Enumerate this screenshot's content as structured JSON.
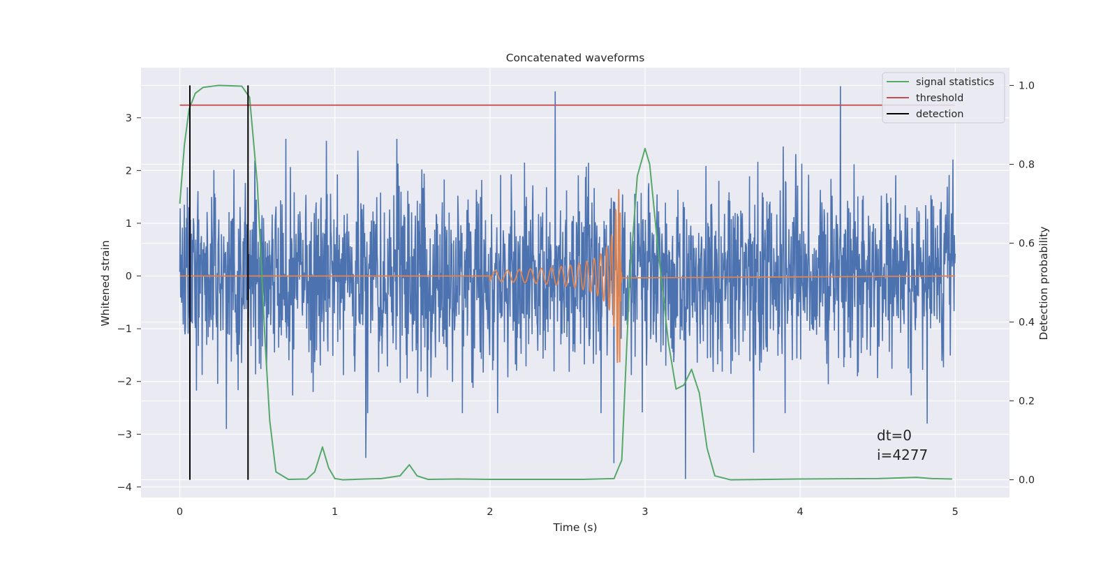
{
  "chart_data": {
    "type": "line",
    "title": "Concatenated waveforms",
    "xlabel": "Time (s)",
    "ylabel": "Whitened strain",
    "ylabel_right": "Detection probability",
    "xlim": [
      -0.25,
      5.35
    ],
    "ylim_left": [
      -4.2,
      3.95
    ],
    "ylim_right": [
      -0.045,
      1.045
    ],
    "x_ticks": [
      "0",
      "1",
      "2",
      "3",
      "4",
      "5"
    ],
    "y_ticks_left": [
      "3",
      "2",
      "1",
      "0",
      "−1",
      "−2",
      "−3",
      "−4"
    ],
    "y_ticks_right": [
      "1.0",
      "0.8",
      "0.6",
      "0.4",
      "0.2",
      "0.0"
    ],
    "grid": true,
    "legend_position": "top-right",
    "legend": [
      "signal statistics",
      "threshold",
      "detection"
    ],
    "colors": {
      "strain": "#4c72b0",
      "injected_signal": "#dd8452",
      "signal_statistics": "#55a868",
      "threshold": "#c44e52",
      "detection": "#000000",
      "plot_background": "#eaeaf2",
      "grid": "#ffffff"
    },
    "series": [
      {
        "name": "signal statistics",
        "axis": "right",
        "x": [
          0.0,
          0.03,
          0.06,
          0.1,
          0.15,
          0.25,
          0.4,
          0.45,
          0.5,
          0.55,
          0.58,
          0.62,
          0.7,
          0.82,
          0.87,
          0.92,
          0.96,
          1.0,
          1.05,
          1.2,
          1.3,
          1.42,
          1.48,
          1.53,
          1.6,
          1.8,
          2.0,
          2.6,
          2.8,
          2.85,
          2.9,
          2.95,
          3.0,
          3.03,
          3.08,
          3.15,
          3.2,
          3.25,
          3.3,
          3.35,
          3.4,
          3.45,
          3.55,
          4.0,
          4.5,
          4.75,
          4.85,
          4.98
        ],
        "y": [
          0.7,
          0.85,
          0.94,
          0.98,
          0.995,
          1.0,
          0.998,
          0.97,
          0.75,
          0.35,
          0.15,
          0.02,
          0.001,
          0.002,
          0.02,
          0.083,
          0.03,
          0.003,
          0.0,
          0.002,
          0.003,
          0.01,
          0.038,
          0.01,
          0.001,
          0.002,
          0.001,
          0.001,
          0.003,
          0.05,
          0.5,
          0.77,
          0.84,
          0.8,
          0.6,
          0.35,
          0.23,
          0.24,
          0.28,
          0.22,
          0.08,
          0.01,
          0.0,
          0.002,
          0.003,
          0.006,
          0.003,
          0.002
        ]
      },
      {
        "name": "threshold",
        "axis": "right",
        "x": [
          0.0,
          5.0
        ],
        "y": [
          0.95,
          0.95
        ]
      },
      {
        "name": "detection",
        "axis": "right",
        "type": "vlines",
        "x": [
          0.065,
          0.44
        ],
        "y_range": [
          0.0,
          1.0
        ]
      },
      {
        "name": "",
        "axis": "left",
        "type": "noise",
        "x_range": [
          0.0,
          5.0
        ],
        "sigma": 0.85,
        "extremes": [
          {
            "x": 2.42,
            "y": 3.5
          },
          {
            "x": 4.26,
            "y": 3.6
          },
          {
            "x": 3.26,
            "y": -3.85
          },
          {
            "x": 2.8,
            "y": -3.55
          },
          {
            "x": 1.2,
            "y": -3.45
          },
          {
            "x": 3.7,
            "y": -3.35
          },
          {
            "x": 0.3,
            "y": -2.9
          },
          {
            "x": 4.82,
            "y": -2.8
          }
        ]
      },
      {
        "name": "",
        "axis": "left",
        "type": "chirp",
        "x_range": [
          2.0,
          2.85
        ],
        "merger_time": 2.84,
        "start_amplitude": 0.1,
        "peak_amplitude": 1.65
      }
    ],
    "annotations": [
      "dt=0",
      "i=4277"
    ]
  }
}
